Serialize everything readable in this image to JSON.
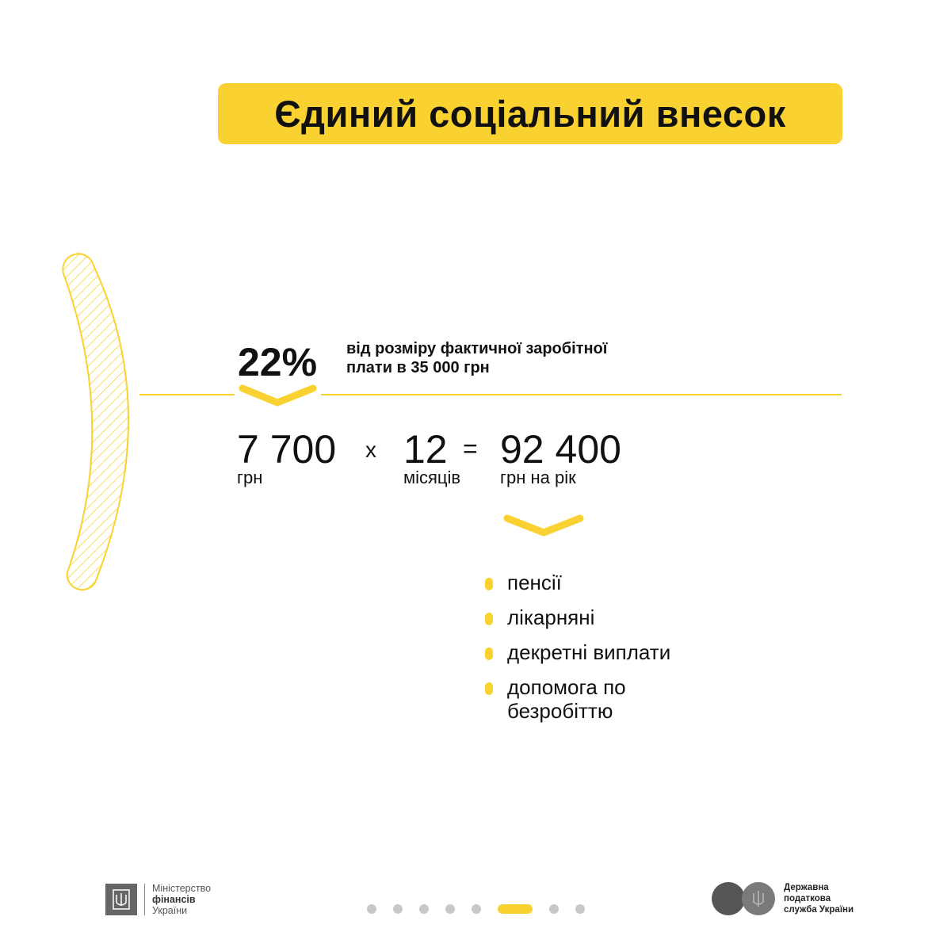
{
  "title": "Єдиний соціальний внесок",
  "rate": {
    "value": "22%",
    "description_line1": "від розміру фактичної заробітної",
    "description_line2": "плати в 35 000 грн"
  },
  "formula": {
    "monthly": {
      "value": "7 700",
      "unit": "грн"
    },
    "times": "x",
    "months": {
      "value": "12",
      "unit": "місяців"
    },
    "equals": "=",
    "annual": {
      "value": "92 400",
      "unit": "грн на рік"
    }
  },
  "uses": [
    "пенсії",
    "лікарняні",
    "декретні виплати",
    "допомога по безробіттю"
  ],
  "footer": {
    "ministry": {
      "line1": "Міністерство",
      "line2": "фінансів",
      "line3": "України"
    },
    "tax_service": {
      "line1": "Державна",
      "line2": "податкова",
      "line3": "служба України"
    },
    "pagination": {
      "total": 8,
      "current": 6
    }
  },
  "colors": {
    "accent": "#f9d231",
    "text": "#111111",
    "dots": "#c8c8c8"
  }
}
